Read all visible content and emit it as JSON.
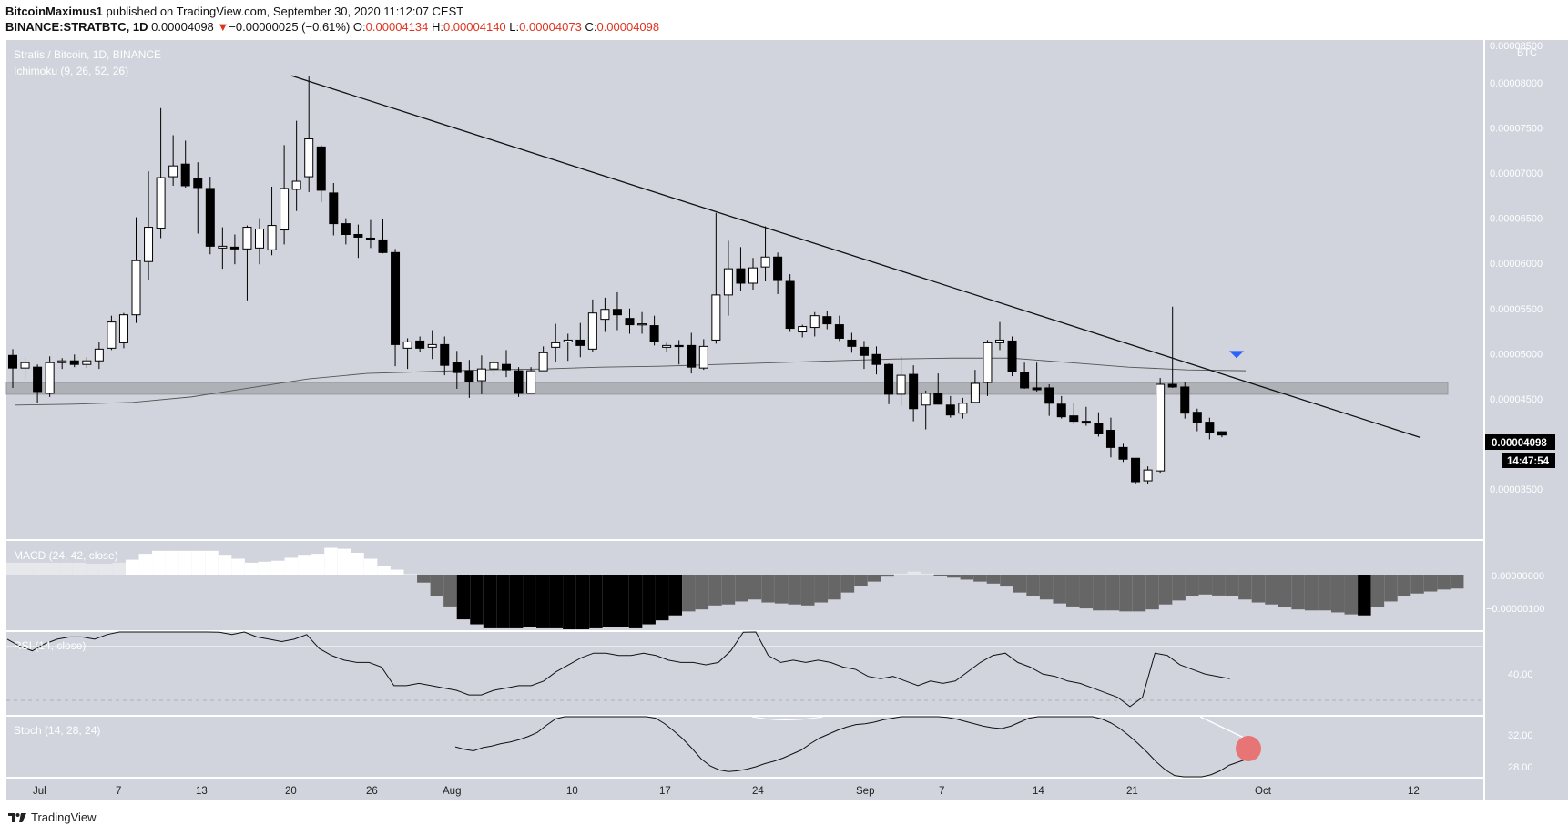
{
  "header": {
    "author": "BitcoinMaximus1",
    "published_text": "published on TradingView.com, September 30, 2020 11:12:07 CEST",
    "symbol": "BINANCE:STRATBTC, 1D",
    "price": "0.00004098",
    "change_arrow": "▼",
    "change": "−0.00000025 (−0.61%)",
    "o_label": "O:",
    "o_value": "0.00004134",
    "h_label": "H:",
    "h_value": "0.00004140",
    "l_label": "L:",
    "l_value": "0.00004073",
    "c_label": "C:",
    "c_value": "0.00004098"
  },
  "main_pane": {
    "title": "Stratis / Bitcoin, 1D, BINANCE",
    "indicator": "Ichimoku (9, 26, 52, 26)",
    "currency": "BTC",
    "current_price_label": "0.00004098",
    "countdown": "14:47:54",
    "y_ticks": [
      "0.00008500",
      "0.00008000",
      "0.00007500",
      "0.00007000",
      "0.00006500",
      "0.00006000",
      "0.00005500",
      "0.00005000",
      "0.00004500",
      "0.00004000",
      "0.00003500"
    ]
  },
  "macd_pane": {
    "title": "MACD (24, 42, close)",
    "y_ticks": [
      "0.00000000",
      "−0.00000100"
    ]
  },
  "rsi_pane": {
    "title": "RSI (14, close)",
    "y_ticks": [
      "40.00"
    ]
  },
  "stoch_pane": {
    "title": "Stoch (14, 28, 24)",
    "y_ticks": [
      "32.00",
      "28.00"
    ]
  },
  "x_axis": {
    "labels": [
      "Jul",
      "7",
      "13",
      "20",
      "26",
      "Aug",
      "10",
      "17",
      "24",
      "Sep",
      "7",
      "14",
      "21",
      "Oct",
      "12"
    ]
  },
  "footer": {
    "brand": "TradingView"
  },
  "colors": {
    "background": "#d1d4dc",
    "up_candle": "#ffffff",
    "down_candle": "#000000",
    "grid_panel": "#ffffff",
    "marker_red": "#e87575",
    "marker_blue": "#2962ff"
  },
  "chart_data": {
    "type": "candlestick",
    "title": "Stratis / Bitcoin, 1D, BINANCE",
    "ylim": [
      3e-05,
      8.5e-05
    ],
    "candles": [
      [
        4.98e-05,
        5.05e-05,
        4.62e-05,
        4.84e-05
      ],
      [
        4.84e-05,
        4.96e-05,
        4.72e-05,
        4.9e-05
      ],
      [
        4.85e-05,
        4.88e-05,
        4.45e-05,
        4.58e-05
      ],
      [
        4.56e-05,
        4.97e-05,
        4.52e-05,
        4.9e-05
      ],
      [
        4.9e-05,
        4.95e-05,
        4.83e-05,
        4.92e-05
      ],
      [
        4.92e-05,
        4.99e-05,
        4.85e-05,
        4.88e-05
      ],
      [
        4.88e-05,
        4.96e-05,
        4.84e-05,
        4.92e-05
      ],
      [
        4.92e-05,
        5.13e-05,
        4.83e-05,
        5.05e-05
      ],
      [
        5.06e-05,
        5.42e-05,
        5.04e-05,
        5.35e-05
      ],
      [
        5.12e-05,
        5.45e-05,
        5.06e-05,
        5.43e-05
      ],
      [
        5.43e-05,
        6.51e-05,
        5.34e-05,
        6.03e-05
      ],
      [
        6.02e-05,
        7.02e-05,
        5.81e-05,
        6.4e-05
      ],
      [
        6.39e-05,
        7.72e-05,
        6.28e-05,
        6.95e-05
      ],
      [
        6.96e-05,
        7.42e-05,
        6.86e-05,
        7.08e-05
      ],
      [
        7.1e-05,
        7.36e-05,
        6.84e-05,
        6.86e-05
      ],
      [
        6.94e-05,
        7.12e-05,
        6.33e-05,
        6.84e-05
      ],
      [
        6.83e-05,
        6.96e-05,
        6.1e-05,
        6.19e-05
      ],
      [
        6.17e-05,
        6.4e-05,
        5.94e-05,
        6.19e-05
      ],
      [
        6.18e-05,
        6.32e-05,
        5.99e-05,
        6.16e-05
      ],
      [
        6.16e-05,
        6.42e-05,
        5.59e-05,
        6.4e-05
      ],
      [
        6.17e-05,
        6.5e-05,
        5.99e-05,
        6.38e-05
      ],
      [
        6.15e-05,
        6.85e-05,
        6.09e-05,
        6.42e-05
      ],
      [
        6.37e-05,
        7.31e-05,
        6.21e-05,
        6.83e-05
      ],
      [
        6.82e-05,
        7.58e-05,
        6.58e-05,
        6.91e-05
      ],
      [
        6.96e-05,
        8.07e-05,
        6.79e-05,
        7.38e-05
      ],
      [
        7.29e-05,
        7.31e-05,
        6.68e-05,
        6.81e-05
      ],
      [
        6.78e-05,
        6.89e-05,
        6.31e-05,
        6.44e-05
      ],
      [
        6.44e-05,
        6.5e-05,
        6.21e-05,
        6.32e-05
      ],
      [
        6.32e-05,
        6.43e-05,
        6.06e-05,
        6.29e-05
      ],
      [
        6.28e-05,
        6.48e-05,
        6.17e-05,
        6.26e-05
      ],
      [
        6.26e-05,
        6.49e-05,
        6.11e-05,
        6.12e-05
      ],
      [
        6.12e-05,
        6.16e-05,
        4.86e-05,
        5.1e-05
      ],
      [
        5.06e-05,
        5.17e-05,
        4.83e-05,
        5.13e-05
      ],
      [
        5.14e-05,
        5.19e-05,
        5.02e-05,
        5.06e-05
      ],
      [
        5.07e-05,
        5.26e-05,
        4.94e-05,
        5.1e-05
      ],
      [
        5.1e-05,
        5.19e-05,
        4.76e-05,
        4.87e-05
      ],
      [
        4.9e-05,
        5.03e-05,
        4.61e-05,
        4.79e-05
      ],
      [
        4.81e-05,
        4.93e-05,
        4.51e-05,
        4.69e-05
      ],
      [
        4.7e-05,
        4.98e-05,
        4.55e-05,
        4.83e-05
      ],
      [
        4.83e-05,
        4.94e-05,
        4.76e-05,
        4.9e-05
      ],
      [
        4.88e-05,
        5.04e-05,
        4.74e-05,
        4.82e-05
      ],
      [
        4.81e-05,
        4.85e-05,
        4.52e-05,
        4.56e-05
      ],
      [
        4.56e-05,
        4.85e-05,
        4.57e-05,
        4.81e-05
      ],
      [
        4.81e-05,
        5.08e-05,
        4.85e-05,
        5.01e-05
      ],
      [
        5.07e-05,
        5.33e-05,
        4.91e-05,
        5.12e-05
      ],
      [
        5.13e-05,
        5.22e-05,
        4.92e-05,
        5.15e-05
      ],
      [
        5.15e-05,
        5.34e-05,
        4.96e-05,
        5.09e-05
      ],
      [
        5.05e-05,
        5.6e-05,
        5.02e-05,
        5.45e-05
      ],
      [
        5.38e-05,
        5.62e-05,
        5.24e-05,
        5.49e-05
      ],
      [
        5.49e-05,
        5.68e-05,
        5.26e-05,
        5.43e-05
      ],
      [
        5.39e-05,
        5.5e-05,
        5.22e-05,
        5.32e-05
      ],
      [
        5.32e-05,
        5.46e-05,
        5.22e-05,
        5.33e-05
      ],
      [
        5.31e-05,
        5.42e-05,
        5.09e-05,
        5.13e-05
      ],
      [
        5.07e-05,
        5.12e-05,
        5.02e-05,
        5.09e-05
      ],
      [
        5.09e-05,
        5.15e-05,
        4.88e-05,
        5.08e-05
      ],
      [
        5.09e-05,
        5.23e-05,
        4.78e-05,
        4.85e-05
      ],
      [
        4.84e-05,
        5.16e-05,
        4.82e-05,
        5.08e-05
      ],
      [
        5.15e-05,
        6.56e-05,
        5.11e-05,
        5.65e-05
      ],
      [
        5.65e-05,
        6.25e-05,
        5.42e-05,
        5.94e-05
      ],
      [
        5.94e-05,
        6.18e-05,
        5.7e-05,
        5.78e-05
      ],
      [
        5.78e-05,
        6.06e-05,
        5.71e-05,
        5.95e-05
      ],
      [
        5.96e-05,
        6.41e-05,
        5.8e-05,
        6.07e-05
      ],
      [
        6.07e-05,
        6.12e-05,
        5.66e-05,
        5.81e-05
      ],
      [
        5.8e-05,
        5.88e-05,
        5.24e-05,
        5.28e-05
      ],
      [
        5.24e-05,
        5.32e-05,
        5.18e-05,
        5.3e-05
      ],
      [
        5.29e-05,
        5.46e-05,
        5.19e-05,
        5.42e-05
      ],
      [
        5.41e-05,
        5.47e-05,
        5.27e-05,
        5.33e-05
      ],
      [
        5.32e-05,
        5.42e-05,
        5.14e-05,
        5.17e-05
      ],
      [
        5.15e-05,
        5.23e-05,
        5.01e-05,
        5.08e-05
      ],
      [
        5.07e-05,
        5.14e-05,
        4.83e-05,
        4.98e-05
      ],
      [
        4.99e-05,
        5.08e-05,
        4.77e-05,
        4.88e-05
      ],
      [
        4.88e-05,
        4.89e-05,
        4.44e-05,
        4.55e-05
      ],
      [
        4.55e-05,
        4.97e-05,
        4.42e-05,
        4.76e-05
      ],
      [
        4.77e-05,
        4.87e-05,
        4.25e-05,
        4.39e-05
      ],
      [
        4.43e-05,
        4.59e-05,
        4.16e-05,
        4.56e-05
      ],
      [
        4.56e-05,
        4.78e-05,
        4.49e-05,
        4.44e-05
      ],
      [
        4.43e-05,
        4.53e-05,
        4.29e-05,
        4.32e-05
      ],
      [
        4.34e-05,
        4.51e-05,
        4.28e-05,
        4.45e-05
      ],
      [
        4.46e-05,
        4.82e-05,
        4.45e-05,
        4.67e-05
      ],
      [
        4.68e-05,
        5.15e-05,
        4.53e-05,
        5.12e-05
      ],
      [
        5.12e-05,
        5.35e-05,
        5.04e-05,
        5.15e-05
      ],
      [
        5.14e-05,
        5.19e-05,
        4.75e-05,
        4.8e-05
      ],
      [
        4.79e-05,
        4.9e-05,
        4.61e-05,
        4.62e-05
      ],
      [
        4.62e-05,
        4.9e-05,
        4.58e-05,
        4.6e-05
      ],
      [
        4.62e-05,
        4.66e-05,
        4.31e-05,
        4.45e-05
      ],
      [
        4.44e-05,
        4.53e-05,
        4.28e-05,
        4.3e-05
      ],
      [
        4.31e-05,
        4.45e-05,
        4.22e-05,
        4.25e-05
      ],
      [
        4.25e-05,
        4.41e-05,
        4.2e-05,
        4.23e-05
      ],
      [
        4.23e-05,
        4.35e-05,
        4.08e-05,
        4.11e-05
      ],
      [
        4.15e-05,
        4.29e-05,
        3.85e-05,
        3.96e-05
      ],
      [
        3.96e-05,
        4e-05,
        3.8e-05,
        3.83e-05
      ],
      [
        3.84e-05,
        3.84e-05,
        3.55e-05,
        3.58e-05
      ],
      [
        3.59e-05,
        3.75e-05,
        3.55e-05,
        3.71e-05
      ],
      [
        3.7e-05,
        4.73e-05,
        3.68e-05,
        4.66e-05
      ],
      [
        4.66e-05,
        5.52e-05,
        4.62e-05,
        4.63e-05
      ],
      [
        4.63e-05,
        4.68e-05,
        4.28e-05,
        4.34e-05
      ],
      [
        4.35e-05,
        4.39e-05,
        4.14e-05,
        4.24e-05
      ],
      [
        4.24e-05,
        4.29e-05,
        4.05e-05,
        4.12e-05
      ],
      [
        4.134e-05,
        4.14e-05,
        4.073e-05,
        4.098e-05
      ]
    ],
    "baseline": [
      4.43e-05,
      4.44e-05,
      4.46e-05,
      4.52e-05,
      4.62e-05,
      4.72e-05,
      4.78e-05,
      4.8e-05,
      4.82e-05,
      4.83e-05,
      4.85e-05,
      4.86e-05,
      4.88e-05,
      4.9e-05,
      4.92e-05,
      4.94e-05,
      4.95e-05,
      4.95e-05,
      4.9e-05,
      4.85e-05,
      4.82e-05,
      4.81e-05
    ],
    "resistance_zone": [
      4.55e-05,
      4.68e-05
    ],
    "trendline": [
      [
        8.08e-05,
        4.07e-05
      ]
    ],
    "macd_hist": [
      1.2e-06,
      1.2e-06,
      1.2e-06,
      1.2e-06,
      1.2e-06,
      1.2e-06,
      1.1e-06,
      1.1e-06,
      1.2e-06,
      1.5e-06,
      2.1e-06,
      2.4e-06,
      2.4e-06,
      2.4e-06,
      2.4e-06,
      2.4e-06,
      2e-06,
      1.6e-06,
      1.2e-06,
      1.3e-06,
      1.4e-06,
      1.7e-06,
      2e-06,
      2.1e-06,
      2.7e-06,
      2.6e-06,
      2.2e-06,
      1.6e-06,
      9e-07,
      5e-07,
      1e-07,
      -8e-07,
      -2.2e-06,
      -3.2e-06,
      -4.5e-06,
      -5e-06,
      -5.4e-06,
      -5.4e-06,
      -5.4e-06,
      -5.3e-06,
      -5.4e-06,
      -5.4e-06,
      -5.5e-06,
      -5.5e-06,
      -5.4e-06,
      -5.3e-06,
      -5.3e-06,
      -5.4e-06,
      -5e-06,
      -4.6e-06,
      -4.1e-06,
      -3.7e-06,
      -3.5e-06,
      -3.1e-06,
      -3e-06,
      -2.7e-06,
      -2.5e-06,
      -2.8e-06,
      -2.9e-06,
      -3e-06,
      -3.1e-06,
      -2.8e-06,
      -2.5e-06,
      -1.8e-06,
      -1.1e-06,
      -7e-07,
      -2e-07,
      1e-07,
      3e-07,
      1e-07,
      -1e-07,
      -3e-07,
      -5e-07,
      -7e-07,
      -9e-07,
      -1.2e-06,
      -1.8e-06,
      -2.2e-06,
      -2.5e-06,
      -2.9e-06,
      -3.2e-06,
      -3.4e-06,
      -3.6e-06,
      -3.6e-06,
      -3.7e-06,
      -3.7e-06,
      -3.5e-06,
      -3e-06,
      -2.6e-06,
      -2.2e-06,
      -2e-06,
      -2.1e-06,
      -2.2e-06,
      -2.5e-06,
      -2.8e-06,
      -3e-06,
      -3.3e-06,
      -3.5e-06,
      -3.6e-06,
      -3.6e-06,
      -3.8e-06,
      -4e-06,
      -4.1e-06,
      -3.3e-06,
      -2.7e-06,
      -2.2e-06,
      -1.9e-06,
      -1.7e-06,
      -1.5e-06,
      -1.4e-06
    ],
    "rsi": [
      62,
      59,
      57,
      60,
      62,
      63,
      63,
      62,
      64,
      67,
      72,
      75,
      78,
      75,
      72,
      70,
      67,
      65,
      64,
      66,
      63,
      62,
      61,
      62,
      64,
      58,
      55,
      53,
      52,
      52,
      50,
      42,
      42,
      43,
      42,
      41,
      40,
      38,
      38,
      40,
      41,
      42,
      42,
      44,
      48,
      51,
      54,
      56,
      56,
      55,
      55,
      56,
      55,
      53,
      52,
      52,
      51,
      52,
      57,
      65,
      70,
      55,
      52,
      53,
      52,
      53,
      52,
      50,
      49,
      46,
      45,
      46,
      44,
      42,
      44,
      43,
      44,
      48,
      52,
      55,
      56,
      52,
      50,
      47,
      46,
      44,
      43,
      41,
      39,
      37,
      33,
      37,
      56,
      55,
      51,
      49,
      47,
      46,
      45
    ],
    "stoch": [
      30.5,
      30.2,
      30.0,
      30.4,
      30.6,
      30.9,
      31.1,
      31.4,
      31.8,
      32.3,
      33.2,
      34.0,
      34.6,
      34.9,
      35.2,
      35.4,
      35.5,
      35.3,
      35.1,
      35.0,
      34.8,
      34.5,
      34.1,
      33.4,
      32.5,
      31.5,
      30.3,
      29.0,
      28.1,
      27.6,
      27.4,
      27.5,
      27.7,
      28.0,
      28.4,
      28.7,
      29.1,
      29.6,
      30.1,
      30.9,
      31.6,
      32.1,
      32.6,
      33.0,
      33.3,
      33.4,
      33.6,
      33.9,
      34.1,
      34.4,
      34.6,
      34.6,
      34.5,
      34.4,
      34.2,
      34.0,
      33.7,
      33.4,
      33.1,
      32.9,
      32.8,
      33.1,
      33.6,
      34.1,
      34.6,
      34.9,
      35.1,
      35.2,
      35.0,
      34.7,
      34.3,
      34.0,
      33.5,
      32.8,
      31.9,
      30.9,
      29.8,
      28.6,
      27.6,
      26.9,
      26.5,
      26.4,
      26.6,
      27.0,
      27.5,
      28.2,
      28.6,
      29.0,
      29.1
    ]
  }
}
